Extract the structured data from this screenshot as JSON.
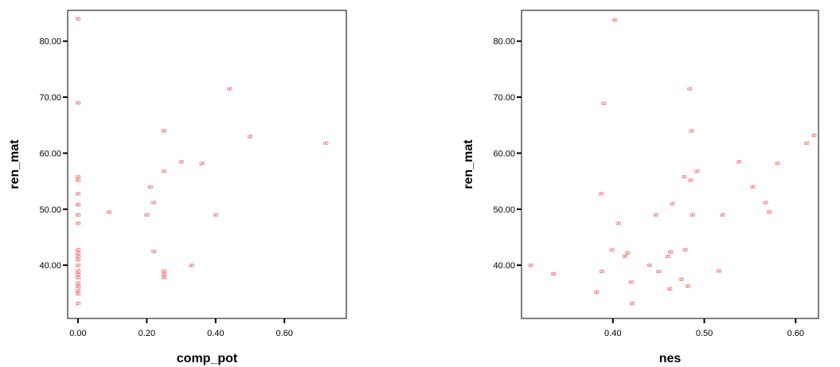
{
  "chart_data": [
    {
      "type": "scatter",
      "xlabel": "comp_pot",
      "ylabel": "ren_mat",
      "xlim": [
        -0.03,
        0.78
      ],
      "ylim": [
        30.5,
        85.5
      ],
      "x_ticks": [
        0.0,
        0.2,
        0.4,
        0.6
      ],
      "x_tick_labels": [
        "0.00",
        "0.20",
        "0.40",
        "0.60"
      ],
      "y_ticks": [
        40,
        50,
        60,
        70,
        80
      ],
      "y_tick_labels": [
        "40.00",
        "50.00",
        "60.00",
        "70.00",
        "80.00"
      ],
      "marker_color": "#f08080",
      "grid": false,
      "points": [
        [
          0.0,
          84.0
        ],
        [
          0.0,
          69.0
        ],
        [
          0.0,
          55.8
        ],
        [
          0.0,
          55.2
        ],
        [
          0.0,
          52.8
        ],
        [
          0.0,
          50.8
        ],
        [
          0.0,
          49.0
        ],
        [
          0.0,
          47.5
        ],
        [
          0.0,
          42.8
        ],
        [
          0.0,
          42.2
        ],
        [
          0.0,
          41.6
        ],
        [
          0.0,
          41.0
        ],
        [
          0.0,
          40.0
        ],
        [
          0.0,
          39.0
        ],
        [
          0.0,
          38.4
        ],
        [
          0.0,
          37.8
        ],
        [
          0.0,
          36.8
        ],
        [
          0.0,
          36.2
        ],
        [
          0.0,
          35.5
        ],
        [
          0.0,
          34.9
        ],
        [
          0.0,
          33.2
        ],
        [
          0.09,
          49.5
        ],
        [
          0.2,
          49.0
        ],
        [
          0.21,
          54.0
        ],
        [
          0.22,
          51.2
        ],
        [
          0.22,
          42.5
        ],
        [
          0.25,
          64.0
        ],
        [
          0.25,
          56.8
        ],
        [
          0.25,
          39.0
        ],
        [
          0.25,
          38.4
        ],
        [
          0.25,
          37.8
        ],
        [
          0.3,
          58.5
        ],
        [
          0.33,
          40.0
        ],
        [
          0.36,
          58.2
        ],
        [
          0.4,
          49.0
        ],
        [
          0.44,
          71.5
        ],
        [
          0.5,
          63.0
        ],
        [
          0.72,
          61.8
        ]
      ]
    },
    {
      "type": "scatter",
      "xlabel": "nes",
      "ylabel": "ren_mat",
      "xlim": [
        0.3,
        0.625
      ],
      "ylim": [
        30.5,
        85.5
      ],
      "x_ticks": [
        0.4,
        0.5,
        0.6
      ],
      "x_tick_labels": [
        "0.40",
        "0.50",
        "0.60"
      ],
      "y_ticks": [
        40,
        50,
        60,
        70,
        80
      ],
      "y_tick_labels": [
        "40.00",
        "50.00",
        "60.00",
        "70.00",
        "80.00"
      ],
      "marker_color": "#f08080",
      "grid": false,
      "points": [
        [
          0.31,
          40.0
        ],
        [
          0.335,
          38.5
        ],
        [
          0.382,
          35.2
        ],
        [
          0.387,
          52.8
        ],
        [
          0.388,
          38.9
        ],
        [
          0.39,
          68.9
        ],
        [
          0.399,
          42.8
        ],
        [
          0.402,
          83.8
        ],
        [
          0.406,
          47.5
        ],
        [
          0.413,
          41.6
        ],
        [
          0.416,
          42.2
        ],
        [
          0.42,
          37.0
        ],
        [
          0.421,
          33.2
        ],
        [
          0.44,
          40.0
        ],
        [
          0.447,
          49.0
        ],
        [
          0.45,
          38.9
        ],
        [
          0.46,
          41.6
        ],
        [
          0.462,
          35.8
        ],
        [
          0.463,
          42.4
        ],
        [
          0.465,
          51.0
        ],
        [
          0.475,
          37.5
        ],
        [
          0.478,
          55.8
        ],
        [
          0.479,
          42.8
        ],
        [
          0.482,
          36.3
        ],
        [
          0.484,
          71.5
        ],
        [
          0.485,
          55.2
        ],
        [
          0.486,
          64.0
        ],
        [
          0.487,
          49.0
        ],
        [
          0.492,
          56.8
        ],
        [
          0.516,
          39.0
        ],
        [
          0.52,
          49.0
        ],
        [
          0.538,
          58.5
        ],
        [
          0.553,
          54.0
        ],
        [
          0.567,
          51.2
        ],
        [
          0.571,
          49.5
        ],
        [
          0.58,
          58.2
        ],
        [
          0.612,
          61.8
        ],
        [
          0.62,
          63.2
        ]
      ]
    }
  ]
}
